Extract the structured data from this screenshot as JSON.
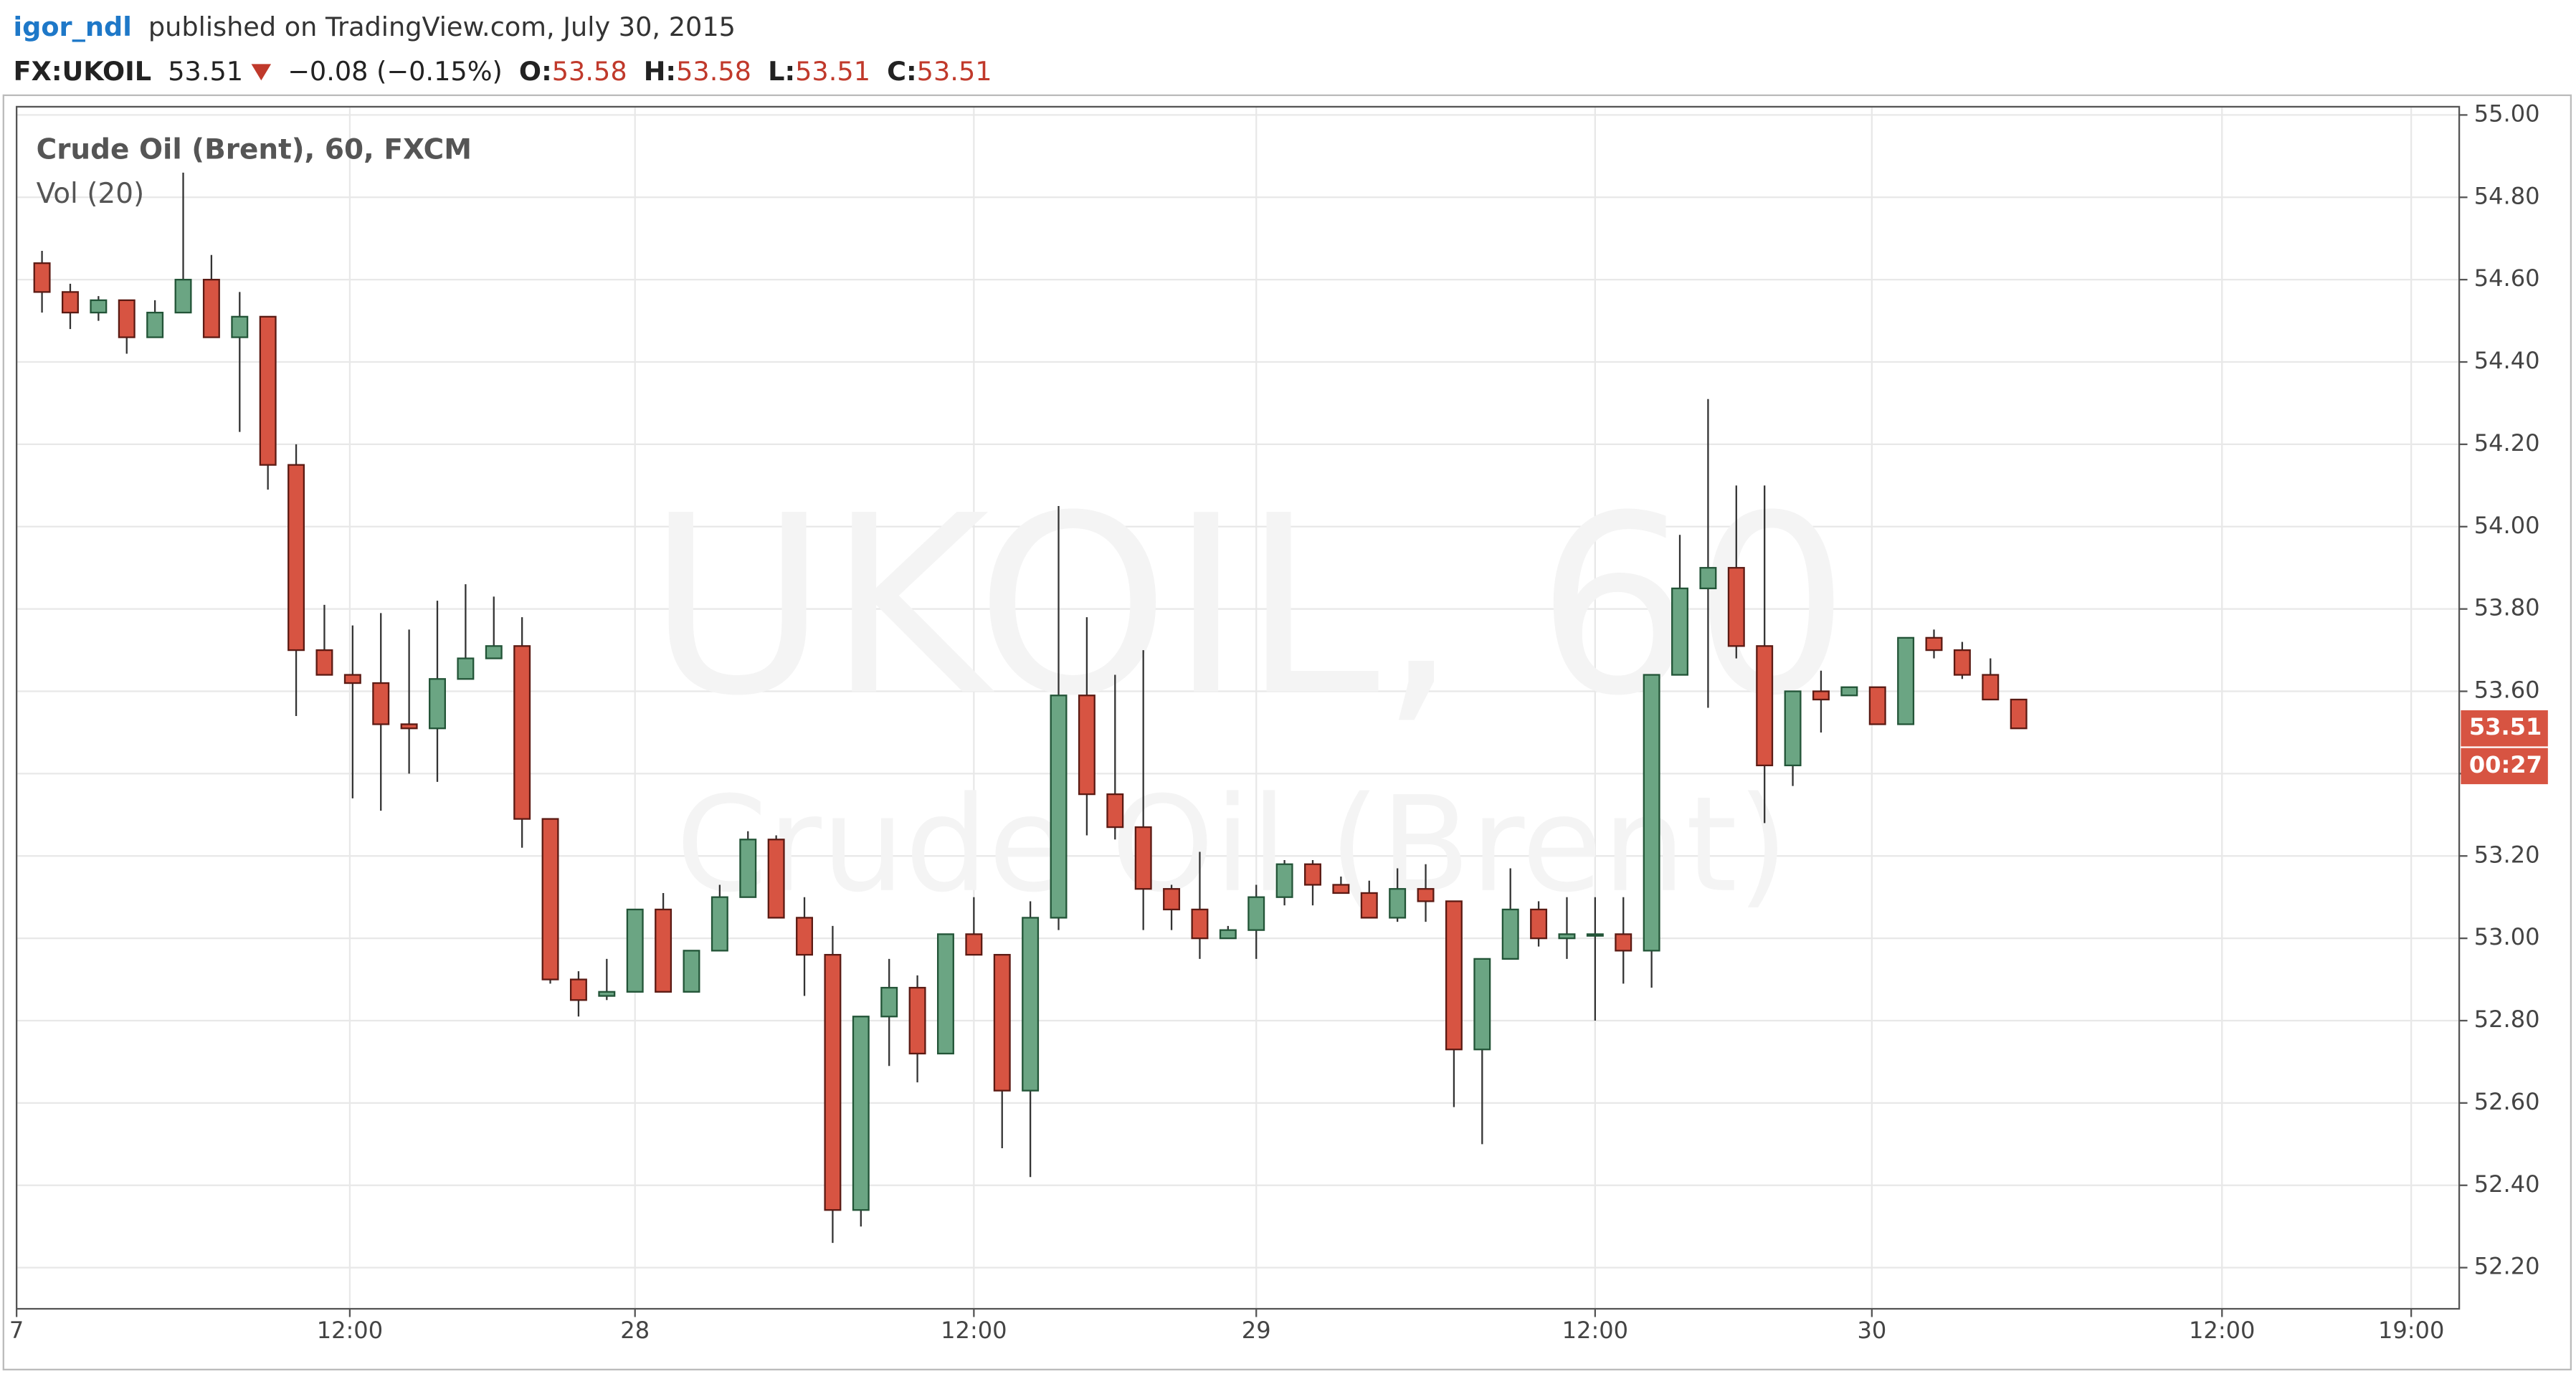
{
  "header": {
    "author": "igor_ndl",
    "published": "published on TradingView.com, July 30, 2015",
    "symbol": "FX:UKOIL",
    "last": "53.51",
    "change": "−0.08 (−0.15%)",
    "open_label": "O:",
    "open": "53.58",
    "high_label": "H:",
    "high": "53.58",
    "low_label": "L:",
    "low": "53.51",
    "close_label": "C:",
    "close": "53.51"
  },
  "chart_data": {
    "type": "candlestick",
    "legend_title": "Crude Oil (Brent), 60, FXCM",
    "indicator": "Vol (20)",
    "watermark_symbol": "UKOIL, 60",
    "watermark_name": "Crude Oil (Brent)",
    "up_color": "#6ba583",
    "up_border": "#225437",
    "down_color": "#d75442",
    "down_border": "#5b1a13",
    "x": [
      0,
      1,
      2,
      3,
      4,
      5,
      6,
      7,
      8,
      9,
      10,
      11,
      12,
      13,
      14,
      15,
      16,
      17,
      18,
      19,
      20,
      21,
      22,
      23,
      24,
      25,
      26,
      27,
      28,
      29,
      30,
      31,
      32,
      33,
      34,
      35,
      36,
      37,
      38,
      39,
      40,
      41,
      42,
      43,
      44,
      45,
      46,
      47,
      48,
      49,
      50,
      51,
      52,
      53,
      54,
      55,
      56,
      57,
      58,
      59,
      60,
      61,
      62,
      63,
      64,
      65,
      66,
      67,
      68,
      69,
      70
    ],
    "open": [
      54.64,
      54.57,
      54.52,
      54.55,
      54.46,
      54.52,
      54.6,
      54.46,
      54.51,
      54.15,
      53.7,
      53.64,
      53.62,
      53.52,
      53.51,
      53.63,
      53.68,
      53.71,
      53.29,
      52.9,
      52.86,
      52.87,
      53.07,
      52.87,
      52.97,
      53.1,
      53.24,
      53.05,
      52.96,
      52.34,
      52.81,
      52.88,
      52.72,
      53.01,
      52.96,
      52.63,
      53.05,
      53.59,
      53.35,
      53.27,
      53.12,
      53.07,
      53.0,
      53.02,
      53.1,
      53.18,
      53.13,
      53.11,
      53.05,
      53.12,
      53.09,
      52.73,
      52.95,
      53.07,
      53.0,
      53.01,
      53.01,
      52.97,
      53.64,
      53.85,
      53.9,
      53.71,
      53.42,
      53.6,
      53.59,
      53.61,
      53.52,
      53.73,
      53.7,
      53.64,
      53.58
    ],
    "high": [
      54.67,
      54.59,
      54.56,
      54.55,
      54.55,
      54.86,
      54.66,
      54.57,
      54.51,
      54.2,
      53.81,
      53.76,
      53.79,
      53.75,
      53.82,
      53.86,
      53.83,
      53.78,
      53.29,
      52.92,
      52.95,
      53.07,
      53.11,
      52.97,
      53.13,
      53.26,
      53.25,
      53.1,
      53.03,
      52.81,
      52.95,
      52.91,
      53.01,
      53.1,
      52.96,
      53.09,
      54.05,
      53.78,
      53.64,
      53.7,
      53.13,
      53.21,
      53.03,
      53.13,
      53.19,
      53.19,
      53.15,
      53.14,
      53.17,
      53.18,
      53.09,
      52.95,
      53.17,
      53.09,
      53.1,
      53.1,
      53.1,
      53.64,
      53.98,
      54.31,
      54.1,
      54.1,
      53.6,
      53.65,
      53.61,
      53.61,
      53.73,
      53.75,
      53.72,
      53.68,
      53.58
    ],
    "low": [
      54.52,
      54.48,
      54.5,
      54.42,
      54.46,
      54.52,
      54.46,
      54.23,
      54.09,
      53.54,
      53.66,
      53.34,
      53.31,
      53.4,
      53.38,
      53.63,
      53.68,
      53.22,
      52.89,
      52.81,
      52.85,
      52.87,
      52.87,
      52.87,
      52.97,
      53.1,
      53.05,
      52.86,
      52.26,
      52.3,
      52.69,
      52.65,
      52.72,
      52.96,
      52.49,
      52.42,
      53.02,
      53.25,
      53.24,
      53.02,
      53.02,
      52.95,
      53.0,
      52.95,
      53.08,
      53.08,
      53.11,
      53.05,
      53.04,
      53.04,
      52.59,
      52.5,
      52.95,
      52.98,
      52.95,
      52.8,
      52.89,
      52.88,
      53.64,
      53.56,
      53.68,
      53.28,
      53.37,
      53.5,
      53.59,
      53.52,
      53.52,
      53.68,
      53.63,
      53.58,
      53.51
    ],
    "close": [
      54.57,
      54.52,
      54.55,
      54.46,
      54.52,
      54.6,
      54.46,
      54.51,
      54.15,
      53.7,
      53.64,
      53.62,
      53.52,
      53.51,
      53.63,
      53.68,
      53.71,
      53.29,
      52.9,
      52.85,
      52.87,
      53.07,
      52.87,
      52.97,
      53.1,
      53.24,
      53.05,
      52.96,
      52.34,
      52.81,
      52.88,
      52.72,
      53.01,
      52.96,
      52.63,
      53.05,
      53.59,
      53.35,
      53.27,
      53.12,
      53.07,
      53.0,
      53.02,
      53.1,
      53.18,
      53.13,
      53.11,
      53.05,
      53.12,
      53.09,
      52.73,
      52.95,
      53.07,
      53.0,
      53.01,
      53.01,
      52.97,
      53.64,
      53.85,
      53.9,
      53.71,
      53.42,
      53.6,
      53.58,
      53.61,
      53.52,
      53.73,
      53.7,
      53.64,
      53.58,
      53.51
    ],
    "xlim": [
      -0.9,
      85.6
    ],
    "xticks": [
      {
        "value": -0.9,
        "label": "7"
      },
      {
        "value": 10.9,
        "label": "12:00"
      },
      {
        "value": 21,
        "label": "28"
      },
      {
        "value": 33,
        "label": "12:00"
      },
      {
        "value": 43,
        "label": "29"
      },
      {
        "value": 55,
        "label": "12:00"
      },
      {
        "value": 64.8,
        "label": "30"
      },
      {
        "value": 77.2,
        "label": "12:00"
      },
      {
        "value": 83.9,
        "label": "19:00"
      }
    ],
    "ylim": [
      52.1,
      55.02
    ],
    "yticks": [
      {
        "value": 52.2,
        "label": "52.20"
      },
      {
        "value": 52.4,
        "label": "52.40"
      },
      {
        "value": 52.6,
        "label": "52.60"
      },
      {
        "value": 52.8,
        "label": "52.80"
      },
      {
        "value": 53,
        "label": "53.00"
      },
      {
        "value": 53.2,
        "label": "53.20"
      },
      {
        "value": 53.4,
        "label": "53.40"
      },
      {
        "value": 53.6,
        "label": "53.60"
      },
      {
        "value": 53.8,
        "label": "53.80"
      },
      {
        "value": 54,
        "label": "54.00"
      },
      {
        "value": 54.2,
        "label": "54.20"
      },
      {
        "value": 54.4,
        "label": "54.40"
      },
      {
        "value": 54.6,
        "label": "54.60"
      },
      {
        "value": 54.8,
        "label": "54.80"
      },
      {
        "value": 55,
        "label": "55.00"
      }
    ],
    "grid": true,
    "last_price": 53.51,
    "countdown": "00:27"
  }
}
